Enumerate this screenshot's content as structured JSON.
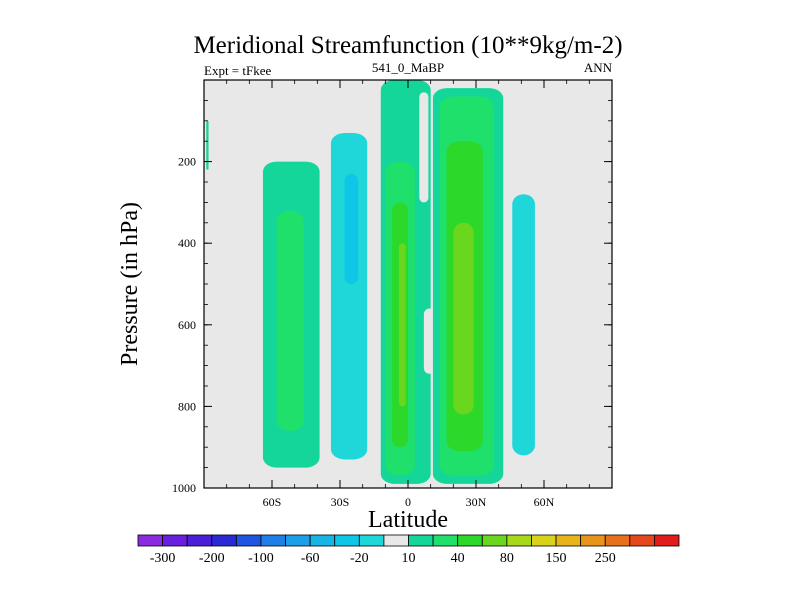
{
  "chart_data": {
    "type": "heatmap",
    "title": "Meridional Streamfunction (10**9kg/m-2)",
    "left_string": "Expt = tFkee",
    "center_string": "541_0_MaBP",
    "right_string": "ANN",
    "xlabel": "Latitude",
    "ylabel": "Pressure (in hPa)",
    "xlim": [
      -90,
      90
    ],
    "ylim": [
      1000,
      0
    ],
    "x_ticks": [
      {
        "value": -60,
        "label": "60S"
      },
      {
        "value": -30,
        "label": "30S"
      },
      {
        "value": 0,
        "label": "0"
      },
      {
        "value": 30,
        "label": "30N"
      },
      {
        "value": 60,
        "label": "60N"
      }
    ],
    "y_ticks": [
      {
        "value": 200,
        "label": "200"
      },
      {
        "value": 400,
        "label": "400"
      },
      {
        "value": 600,
        "label": "600"
      },
      {
        "value": 800,
        "label": "800"
      },
      {
        "value": 1000,
        "label": "1000"
      }
    ],
    "contour_levels": [
      -300,
      -250,
      -200,
      -150,
      -100,
      -80,
      -60,
      -40,
      -20,
      -10,
      10,
      20,
      40,
      60,
      80,
      100,
      150,
      200,
      250,
      300
    ],
    "colorbar": {
      "colors": [
        "#8a2be2",
        "#6a1fe0",
        "#4b1fd8",
        "#2a2ad4",
        "#1f55e0",
        "#1e7fe6",
        "#1c9fe8",
        "#17b5e6",
        "#10c6e6",
        "#1fd7d8",
        "#e8e8e8",
        "#14d69a",
        "#1ee06a",
        "#2cd82a",
        "#6ad61e",
        "#a8d81a",
        "#d8d21a",
        "#e8b41a",
        "#e6941a",
        "#e6701c",
        "#e4481c",
        "#e01c1c"
      ],
      "tick_labels": [
        "-300",
        "-200",
        "-100",
        "-60",
        "-20",
        "10",
        "40",
        "80",
        "150",
        "250"
      ]
    },
    "cells": [
      {
        "lat_min": -89,
        "lat_max": -88,
        "p_top": 100,
        "p_bottom": 220,
        "value": 10
      },
      {
        "lat_min": -64,
        "lat_max": -39,
        "p_top": 200,
        "p_bottom": 950,
        "value": 10
      },
      {
        "lat_min": -58,
        "lat_max": -46,
        "p_top": 320,
        "p_bottom": 860,
        "value": 20
      },
      {
        "lat_min": -38,
        "lat_max": -13,
        "p_top": 40,
        "p_bottom": 960,
        "value": -10
      },
      {
        "lat_min": -34,
        "lat_max": -18,
        "p_top": 130,
        "p_bottom": 930,
        "value": -20
      },
      {
        "lat_min": -28,
        "lat_max": -22,
        "p_top": 230,
        "p_bottom": 500,
        "value": -40
      },
      {
        "lat_min": -12,
        "lat_max": 10,
        "p_top": 0,
        "p_bottom": 990,
        "value": 10
      },
      {
        "lat_min": -10,
        "lat_max": 3,
        "p_top": 200,
        "p_bottom": 970,
        "value": 20
      },
      {
        "lat_min": -7,
        "lat_max": 0,
        "p_top": 300,
        "p_bottom": 900,
        "value": 40
      },
      {
        "lat_min": -4,
        "lat_max": -1,
        "p_top": 400,
        "p_bottom": 800,
        "value": 60
      },
      {
        "lat_min": 5,
        "lat_max": 9,
        "p_top": 30,
        "p_bottom": 300,
        "value": -10
      },
      {
        "lat_min": 7,
        "lat_max": 12,
        "p_top": 560,
        "p_bottom": 720,
        "value": -10
      },
      {
        "lat_min": 11,
        "lat_max": 42,
        "p_top": 20,
        "p_bottom": 990,
        "value": 10
      },
      {
        "lat_min": 14,
        "lat_max": 38,
        "p_top": 40,
        "p_bottom": 970,
        "value": 20
      },
      {
        "lat_min": 17,
        "lat_max": 33,
        "p_top": 150,
        "p_bottom": 910,
        "value": 40
      },
      {
        "lat_min": 20,
        "lat_max": 29,
        "p_top": 350,
        "p_bottom": 820,
        "value": 60
      },
      {
        "lat_min": 43,
        "lat_max": 60,
        "p_top": 0,
        "p_bottom": 960,
        "value": -10
      },
      {
        "lat_min": 46,
        "lat_max": 56,
        "p_top": 280,
        "p_bottom": 920,
        "value": -20
      }
    ]
  },
  "colors": {
    "background": "#e8e8e8"
  }
}
